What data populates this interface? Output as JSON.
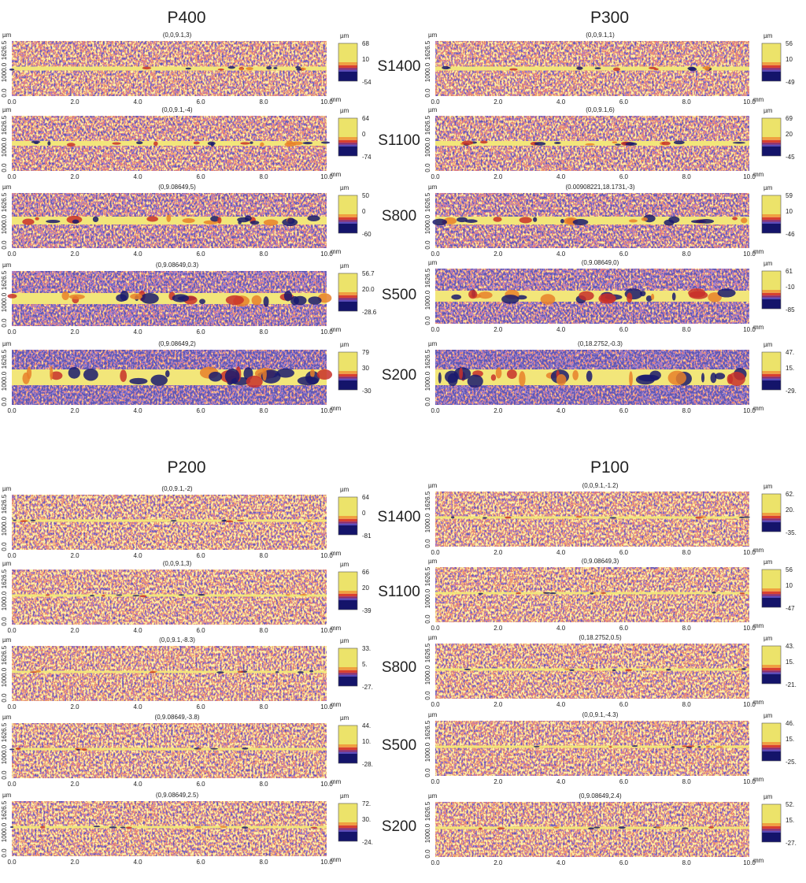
{
  "sections": [
    {
      "samples": [
        "S1400",
        "S1100",
        "S800",
        "S500",
        "S200"
      ],
      "groups": [
        {
          "title": "P400",
          "panels": [
            {
              "header": "(0,0,9.1,3)",
              "colorbar": [
                "68",
                "10",
                "-54"
              ]
            },
            {
              "header": "(0,0,9.1,-4)",
              "colorbar": [
                "64",
                "0",
                "-74"
              ]
            },
            {
              "header": "(0,9.08649,5)",
              "colorbar": [
                "50",
                "0",
                "-60"
              ]
            },
            {
              "header": "(0,9.08649,0.3)",
              "colorbar": [
                "56.7",
                "20.0",
                "-28.6"
              ]
            },
            {
              "header": "(0,9.08649,2)",
              "colorbar": [
                "79",
                "30",
                "-30"
              ]
            }
          ]
        },
        {
          "title": "P300",
          "panels": [
            {
              "header": "(0,0,9.1,1)",
              "colorbar": [
                "56",
                "10",
                "-49"
              ]
            },
            {
              "header": "(0,0,9.1,6)",
              "colorbar": [
                "69",
                "20",
                "-45"
              ]
            },
            {
              "header": "(0.00908221,18.1731,-3)",
              "colorbar": [
                "59",
                "10",
                "-46"
              ]
            },
            {
              "header": "(0,9.08649,0)",
              "colorbar": [
                "61",
                "-10",
                "-85"
              ]
            },
            {
              "header": "(0,18.2752,-0.3)",
              "colorbar": [
                "47.",
                "15.",
                "-29."
              ]
            }
          ]
        }
      ]
    },
    {
      "samples": [
        "S1400",
        "S1100",
        "S800",
        "S500",
        "S200"
      ],
      "groups": [
        {
          "title": "P200",
          "panels": [
            {
              "header": "(0,0,9.1,-2)",
              "colorbar": [
                "64",
                "0",
                "-81"
              ]
            },
            {
              "header": "(0,0,9.1,3)",
              "colorbar": [
                "66",
                "20",
                "-39"
              ]
            },
            {
              "header": "(0,0,9.1,-8.3)",
              "colorbar": [
                "33.",
                "5.",
                "-27."
              ]
            },
            {
              "header": "(0,9.08649,-3.8)",
              "colorbar": [
                "44.",
                "10.",
                "-28."
              ]
            },
            {
              "header": "(0,9.08649,2.5)",
              "colorbar": [
                "72.",
                "30.",
                "-24."
              ]
            }
          ]
        },
        {
          "title": "P100",
          "panels": [
            {
              "header": "(0,0,9.1,-1.2)",
              "colorbar": [
                "62.",
                "20.",
                "-35."
              ]
            },
            {
              "header": "(0,9.08649,3)",
              "colorbar": [
                "56",
                "10",
                "-47"
              ]
            },
            {
              "header": "(0,18.2752,0.5)",
              "colorbar": [
                "43.",
                "15.",
                "-21."
              ]
            },
            {
              "header": "(0,0,9.1,-4.3)",
              "colorbar": [
                "46.",
                "15.",
                "-25."
              ]
            },
            {
              "header": "(0,9.08649,2.4)",
              "colorbar": [
                "52.",
                "15.",
                "-27."
              ]
            }
          ]
        }
      ]
    }
  ],
  "axis": {
    "y_unit": "µm",
    "y_labels": [
      "1000.0",
      "1626.5",
      "0.0"
    ],
    "x_ticks": [
      "0.0",
      "2.0",
      "4.0",
      "6.0",
      "8.0",
      "10.0"
    ],
    "x_unit": "mm",
    "colorbar_unit": "µm"
  }
}
